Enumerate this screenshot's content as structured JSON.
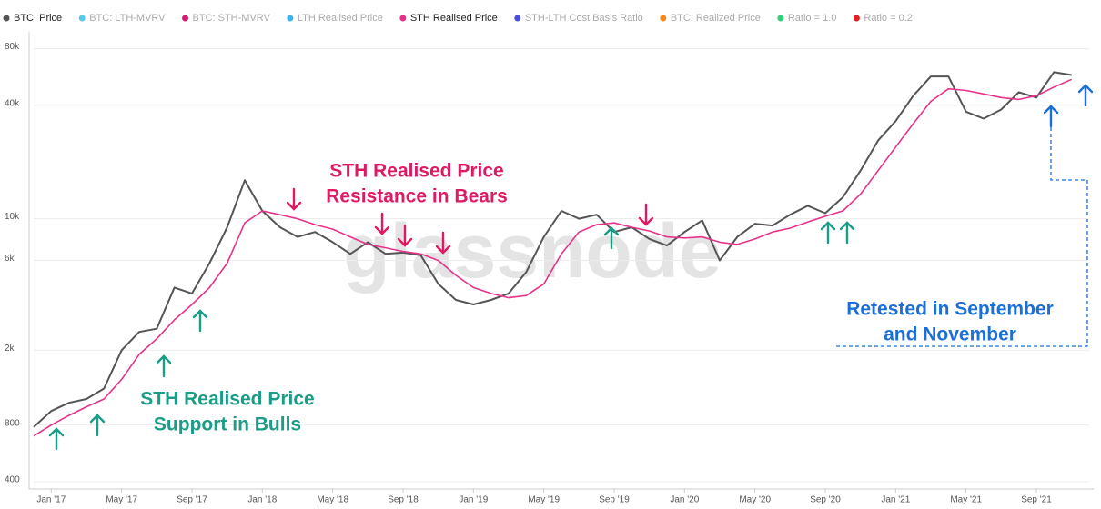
{
  "chart_data": {
    "type": "line",
    "log_scale": true,
    "grid": true,
    "watermark": "glassnode",
    "xlim": [
      "2016-12",
      "2021-12"
    ],
    "xticks": [
      {
        "value": "2017-01",
        "label": "Jan '17"
      },
      {
        "value": "2017-05",
        "label": "May '17"
      },
      {
        "value": "2017-09",
        "label": "Sep '17"
      },
      {
        "value": "2018-01",
        "label": "Jan '18"
      },
      {
        "value": "2018-05",
        "label": "May '18"
      },
      {
        "value": "2018-09",
        "label": "Sep '18"
      },
      {
        "value": "2019-01",
        "label": "Jan '19"
      },
      {
        "value": "2019-05",
        "label": "May '19"
      },
      {
        "value": "2019-09",
        "label": "Sep '19"
      },
      {
        "value": "2020-01",
        "label": "Jan '20"
      },
      {
        "value": "2020-05",
        "label": "May '20"
      },
      {
        "value": "2020-09",
        "label": "Sep '20"
      },
      {
        "value": "2021-01",
        "label": "Jan '21"
      },
      {
        "value": "2021-05",
        "label": "May '21"
      },
      {
        "value": "2021-09",
        "label": "Sep '21"
      }
    ],
    "ylim": [
      400,
      88000
    ],
    "yticks": [
      400,
      800,
      {
        "value": 2000,
        "label": "2k"
      },
      {
        "value": 6000,
        "label": "6k"
      },
      {
        "value": 10000,
        "label": "10k"
      },
      {
        "value": 40000,
        "label": "40k"
      },
      {
        "value": 80000,
        "label": "80k"
      }
    ],
    "x": [
      "2016-12",
      "2017-01",
      "2017-02",
      "2017-03",
      "2017-04",
      "2017-05",
      "2017-06",
      "2017-07",
      "2017-08",
      "2017-09",
      "2017-10",
      "2017-11",
      "2017-12",
      "2018-01",
      "2018-02",
      "2018-03",
      "2018-04",
      "2018-05",
      "2018-06",
      "2018-07",
      "2018-08",
      "2018-09",
      "2018-10",
      "2018-11",
      "2018-12",
      "2019-01",
      "2019-02",
      "2019-03",
      "2019-04",
      "2019-05",
      "2019-06",
      "2019-07",
      "2019-08",
      "2019-09",
      "2019-10",
      "2019-11",
      "2019-12",
      "2020-01",
      "2020-02",
      "2020-03",
      "2020-04",
      "2020-05",
      "2020-06",
      "2020-07",
      "2020-08",
      "2020-09",
      "2020-10",
      "2020-11",
      "2020-12",
      "2021-01",
      "2021-02",
      "2021-03",
      "2021-04",
      "2021-05",
      "2021-06",
      "2021-07",
      "2021-08",
      "2021-09",
      "2021-10",
      "2021-11"
    ],
    "series": [
      {
        "name": "BTC: Price",
        "color": "#555555",
        "visible": true,
        "values": [
          780,
          950,
          1050,
          1100,
          1250,
          2000,
          2500,
          2600,
          4300,
          4000,
          5800,
          9000,
          16000,
          11000,
          9000,
          8000,
          8500,
          7500,
          6500,
          7500,
          6500,
          6600,
          6400,
          4500,
          3700,
          3500,
          3700,
          4000,
          5200,
          8000,
          11000,
          10000,
          10500,
          8500,
          9000,
          7800,
          7200,
          8500,
          9800,
          6000,
          8000,
          9400,
          9200,
          10500,
          11700,
          10700,
          13000,
          18000,
          26000,
          33000,
          45000,
          57000,
          57000,
          37000,
          34000,
          38000,
          47000,
          44000,
          60000,
          58000
        ]
      },
      {
        "name": "BTC: LTH-MVRV",
        "color": "#5bc8f0",
        "visible": false
      },
      {
        "name": "BTC: STH-MVRV",
        "color": "#d0206e",
        "visible": false
      },
      {
        "name": "LTH Realised Price",
        "color": "#3fb4e8",
        "visible": false
      },
      {
        "name": "STH Realised Price",
        "color": "#e5338a",
        "visible": true,
        "values": [
          700,
          800,
          900,
          1000,
          1100,
          1400,
          1900,
          2300,
          2900,
          3500,
          4300,
          5800,
          9500,
          11000,
          10500,
          10000,
          9300,
          8800,
          8000,
          7300,
          7000,
          6700,
          6500,
          6000,
          5000,
          4300,
          4000,
          3800,
          3900,
          4500,
          6500,
          8500,
          9300,
          9500,
          9000,
          8600,
          8000,
          7900,
          8000,
          7500,
          7300,
          7800,
          8500,
          8900,
          9600,
          10300,
          11000,
          13500,
          18000,
          24000,
          32000,
          42000,
          49000,
          48000,
          46000,
          44000,
          43000,
          45000,
          50000,
          55000
        ]
      },
      {
        "name": "STH-LTH Cost Basis Ratio",
        "color": "#4b4fd8",
        "visible": false
      },
      {
        "name": "BTC: Realized Price",
        "color": "#f5891f",
        "visible": false
      },
      {
        "name": "Ratio = 1.0",
        "color": "#2fd27a",
        "visible": false
      },
      {
        "name": "Ratio = 0.2",
        "color": "#e0201e",
        "visible": false
      }
    ],
    "annotations": [
      {
        "lines": [
          "STH Realised Price",
          "Resistance in Bears"
        ],
        "color": "#de1a64"
      },
      {
        "lines": [
          "STH Realised Price",
          "Support in Bulls"
        ],
        "color": "#1a9c86"
      },
      {
        "lines": [
          "Retested in September",
          "and November"
        ],
        "color": "#1b6fd6"
      }
    ]
  }
}
